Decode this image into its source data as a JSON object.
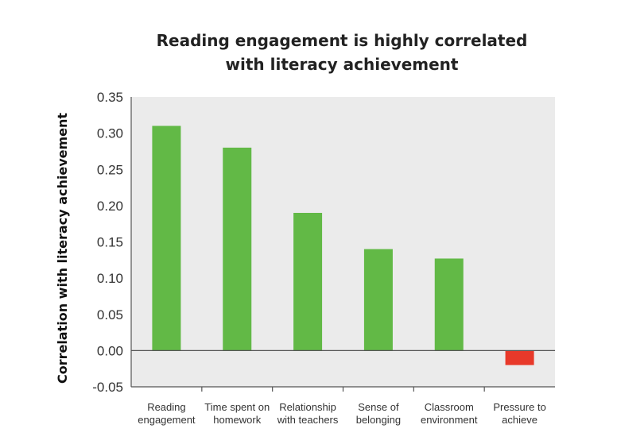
{
  "chart_data": {
    "type": "bar",
    "title": [
      "Reading engagement is highly correlated",
      "with literacy achievement"
    ],
    "ylabel": "Correlation with literacy achievement",
    "xlabel": "",
    "ylim": [
      -0.05,
      0.35
    ],
    "yticks": [
      "0.35",
      "0.30",
      "0.25",
      "0.20",
      "0.15",
      "0.10",
      "0.05",
      "0.00",
      "-0.05"
    ],
    "ytick_values": [
      0.35,
      0.3,
      0.25,
      0.2,
      0.15,
      0.1,
      0.05,
      0.0,
      -0.05
    ],
    "categories": [
      [
        "Reading",
        "engagement"
      ],
      [
        "Time spent on",
        "homework"
      ],
      [
        "Relationship",
        "with teachers"
      ],
      [
        "Sense of",
        "belonging"
      ],
      [
        "Classroom",
        "environment"
      ],
      [
        "Pressure to",
        "achieve"
      ]
    ],
    "values": [
      0.31,
      0.28,
      0.19,
      0.14,
      0.127,
      -0.02
    ],
    "grid": false,
    "colors": {
      "positive": "#62b946",
      "negative": "#e8392a",
      "plot_background": "#ebebeb",
      "axis": "#555555"
    }
  }
}
